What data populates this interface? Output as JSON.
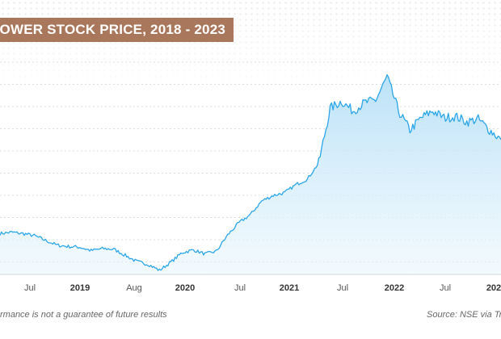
{
  "chart_data": {
    "type": "area",
    "title": "OWER STOCK PRICE, 2018 - 2023",
    "xlabel": "",
    "ylabel": "",
    "x_ticks": [
      "Jul",
      "2019",
      "Aug",
      "2020",
      "Jul",
      "2021",
      "Jul",
      "2022",
      "Jul",
      "202"
    ],
    "x_tick_bold": [
      false,
      true,
      false,
      true,
      false,
      true,
      false,
      true,
      false,
      true
    ],
    "grid": true,
    "series": [
      {
        "values": [
          0.3,
          0.31,
          0.3,
          0.285,
          0.25,
          0.215,
          0.205,
          0.2,
          0.175,
          0.19,
          0.185,
          0.14,
          0.095,
          0.075,
          0.03,
          0.09,
          0.16,
          0.18,
          0.15,
          0.17,
          0.29,
          0.38,
          0.44,
          0.54,
          0.58,
          0.6,
          0.66,
          0.7,
          0.82,
          1.22,
          1.27,
          1.2,
          1.26,
          1.28,
          1.45,
          1.2,
          1.06,
          1.15,
          1.2,
          1.15,
          1.16,
          1.12,
          1.14,
          1.06,
          0.99
        ]
      }
    ]
  },
  "footer": {
    "disclaimer": "rmance is not a guarantee of future results",
    "source": "Source: NSE via Tr"
  }
}
